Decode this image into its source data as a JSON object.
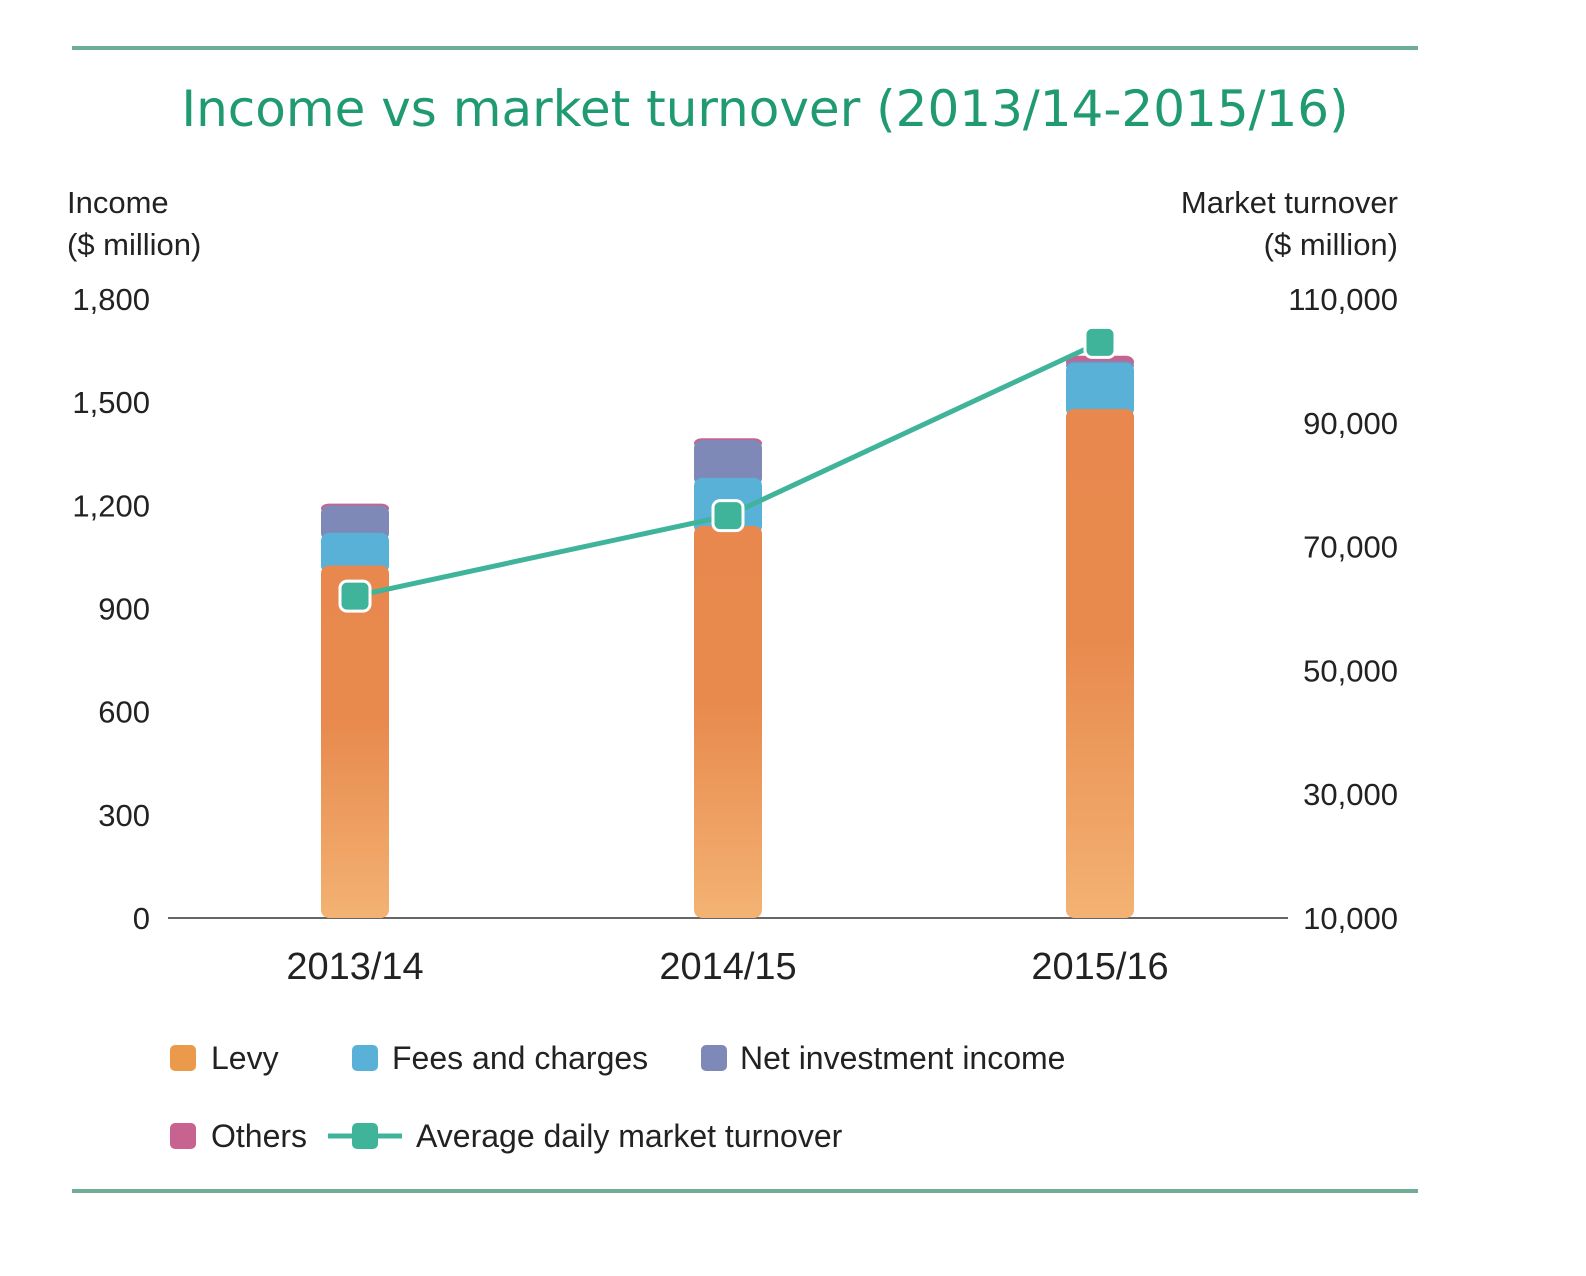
{
  "chart_data": {
    "type": "bar",
    "stacked": true,
    "title": "Income vs market turnover (2013/14-2015/16)",
    "y_left_label_lines": [
      "Income",
      "($ million)"
    ],
    "y_right_label_lines": [
      "Market turnover",
      "($ million)"
    ],
    "categories": [
      "2013/14",
      "2014/15",
      "2015/16"
    ],
    "y_left_ticks": [
      "0",
      "300",
      "600",
      "900",
      "1,200",
      "1,500",
      "1,800"
    ],
    "y_right_ticks": [
      "10,000",
      "30,000",
      "50,000",
      "70,000",
      "90,000",
      "110,000"
    ],
    "ylim_left": [
      0,
      1800
    ],
    "ylim_right": [
      10000,
      110000
    ],
    "series": [
      {
        "name": "Levy",
        "color": "#e8884e",
        "values": [
          1025,
          1140,
          1480
        ]
      },
      {
        "name": "Fees and charges",
        "color": "#5ab1d8",
        "values": [
          95,
          140,
          135
        ]
      },
      {
        "name": "Net investment income",
        "color": "#7f89b8",
        "values": [
          80,
          110,
          5
        ]
      },
      {
        "name": "Others",
        "color": "#c7638e",
        "values": [
          5,
          5,
          15
        ]
      }
    ],
    "line_series": {
      "name": "Average daily market turnover",
      "color": "#3fb49a",
      "axis": "right",
      "values": [
        62000,
        75000,
        103000
      ]
    },
    "legend_position": "bottom",
    "grid": false
  }
}
